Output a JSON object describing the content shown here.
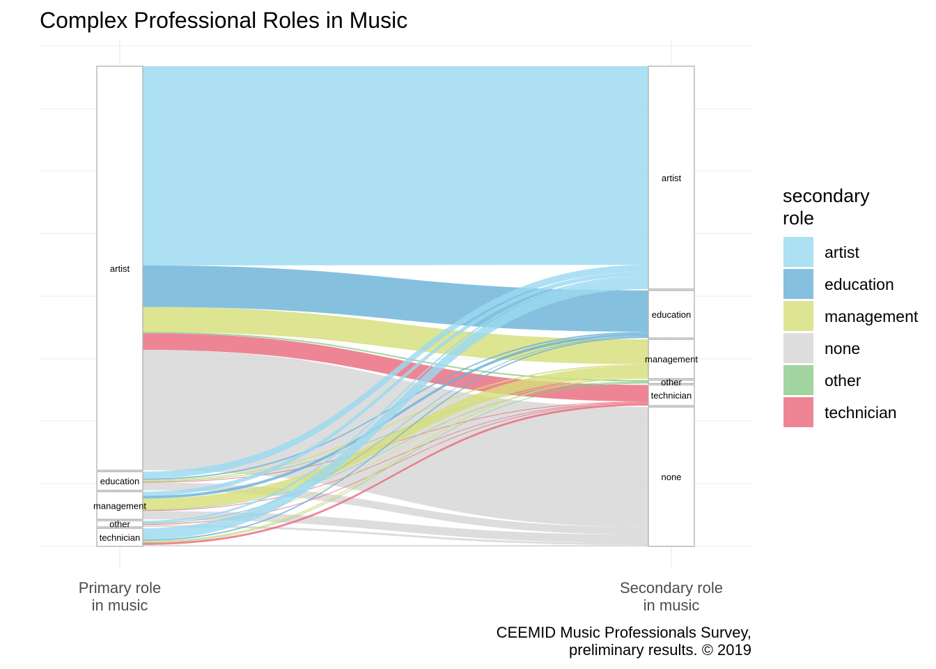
{
  "chart_data": {
    "type": "alluvial",
    "title": "Complex Professional Roles in Music",
    "axes": [
      "Primary role\nin music",
      "Secondary role\nin music"
    ],
    "categories": [
      "artist",
      "education",
      "management",
      "other",
      "technician",
      "none"
    ],
    "legend": {
      "title": "secondary\nrole",
      "placement": "right",
      "entries": [
        {
          "name": "artist",
          "color": "#9BD9F0"
        },
        {
          "name": "education",
          "color": "#6BB2D8"
        },
        {
          "name": "management",
          "color": "#D5DE7A"
        },
        {
          "name": "none",
          "color": "#D6D6D6"
        },
        {
          "name": "other",
          "color": "#8DCB8A"
        },
        {
          "name": "technician",
          "color": "#EA6A7D"
        }
      ]
    },
    "primary_order": [
      "artist",
      "education",
      "management",
      "other",
      "technician"
    ],
    "secondary_order": [
      "artist",
      "education",
      "management",
      "other",
      "technician",
      "none"
    ],
    "flows": [
      {
        "from": "artist",
        "to": "artist",
        "value": 288
      },
      {
        "from": "artist",
        "to": "education",
        "value": 60
      },
      {
        "from": "artist",
        "to": "management",
        "value": 36
      },
      {
        "from": "artist",
        "to": "other",
        "value": 2
      },
      {
        "from": "artist",
        "to": "technician",
        "value": 24
      },
      {
        "from": "artist",
        "to": "none",
        "value": 174
      },
      {
        "from": "education",
        "to": "artist",
        "value": 10
      },
      {
        "from": "education",
        "to": "education",
        "value": 2
      },
      {
        "from": "education",
        "to": "management",
        "value": 2
      },
      {
        "from": "education",
        "to": "other",
        "value": 1
      },
      {
        "from": "education",
        "to": "technician",
        "value": 1
      },
      {
        "from": "education",
        "to": "none",
        "value": 11
      },
      {
        "from": "management",
        "to": "artist",
        "value": 6
      },
      {
        "from": "management",
        "to": "education",
        "value": 4
      },
      {
        "from": "management",
        "to": "management",
        "value": 16
      },
      {
        "from": "management",
        "to": "other",
        "value": 1
      },
      {
        "from": "management",
        "to": "technician",
        "value": 1
      },
      {
        "from": "management",
        "to": "none",
        "value": 12
      },
      {
        "from": "other",
        "to": "artist",
        "value": 3
      },
      {
        "from": "other",
        "to": "education",
        "value": 1
      },
      {
        "from": "other",
        "to": "management",
        "value": 1
      },
      {
        "from": "other",
        "to": "technician",
        "value": 1
      },
      {
        "from": "other",
        "to": "none",
        "value": 3
      },
      {
        "from": "technician",
        "to": "artist",
        "value": 16
      },
      {
        "from": "technician",
        "to": "education",
        "value": 2
      },
      {
        "from": "technician",
        "to": "management",
        "value": 2
      },
      {
        "from": "technician",
        "to": "other",
        "value": 1
      },
      {
        "from": "technician",
        "to": "technician",
        "value": 3
      },
      {
        "from": "technician",
        "to": "none",
        "value": 2
      }
    ],
    "caption": "CEEMID Music Professionals Survey,\npreliminary results. © 2019"
  }
}
